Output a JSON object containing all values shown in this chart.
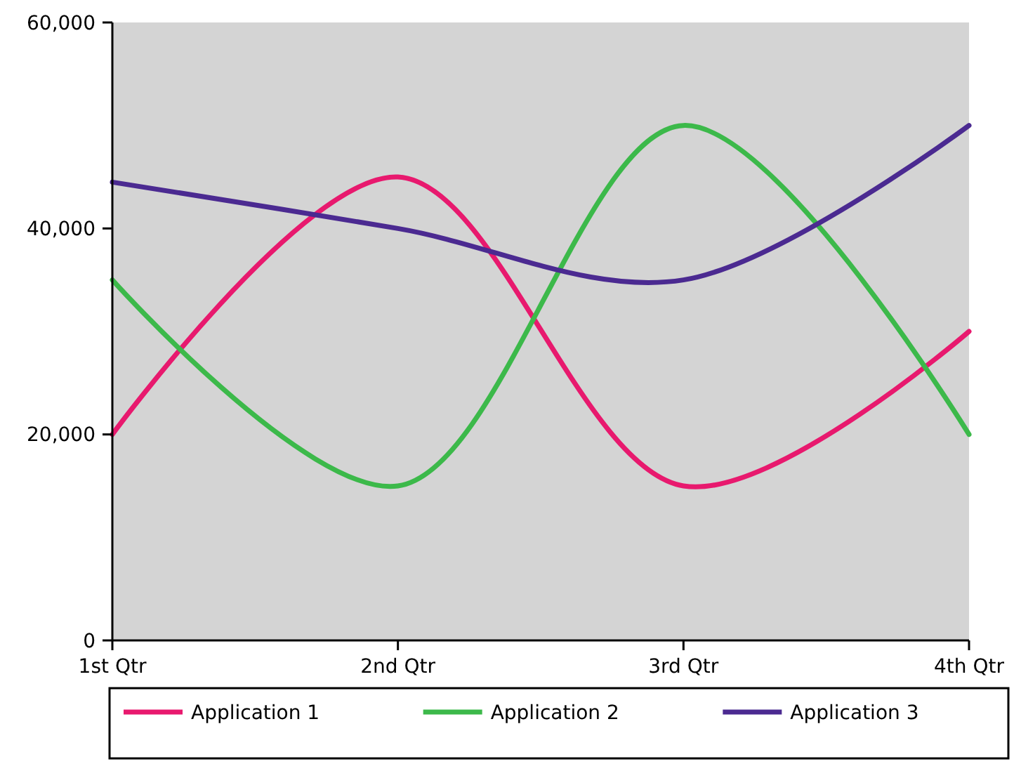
{
  "chart_data": {
    "type": "line",
    "categories": [
      "1st Qtr",
      "2nd Qtr",
      "3rd Qtr",
      "4th Qtr"
    ],
    "series": [
      {
        "name": "Application 1",
        "color": "#e8196e",
        "values": [
          20000,
          45000,
          15000,
          30000
        ]
      },
      {
        "name": "Application 2",
        "color": "#3cb94a",
        "values": [
          35000,
          15000,
          50000,
          20000
        ]
      },
      {
        "name": "Application 3",
        "color": "#4b2a91",
        "values": [
          44500,
          40000,
          35000,
          50000
        ]
      }
    ],
    "ylim": [
      0,
      60000
    ],
    "yticks": [
      {
        "value": 0,
        "label": "0"
      },
      {
        "value": 20000,
        "label": "20,000"
      },
      {
        "value": 40000,
        "label": "40,000"
      },
      {
        "value": 60000,
        "label": "60,000"
      }
    ],
    "grid": false,
    "legend": "bottom",
    "marker": "none",
    "line_style": "solid"
  }
}
